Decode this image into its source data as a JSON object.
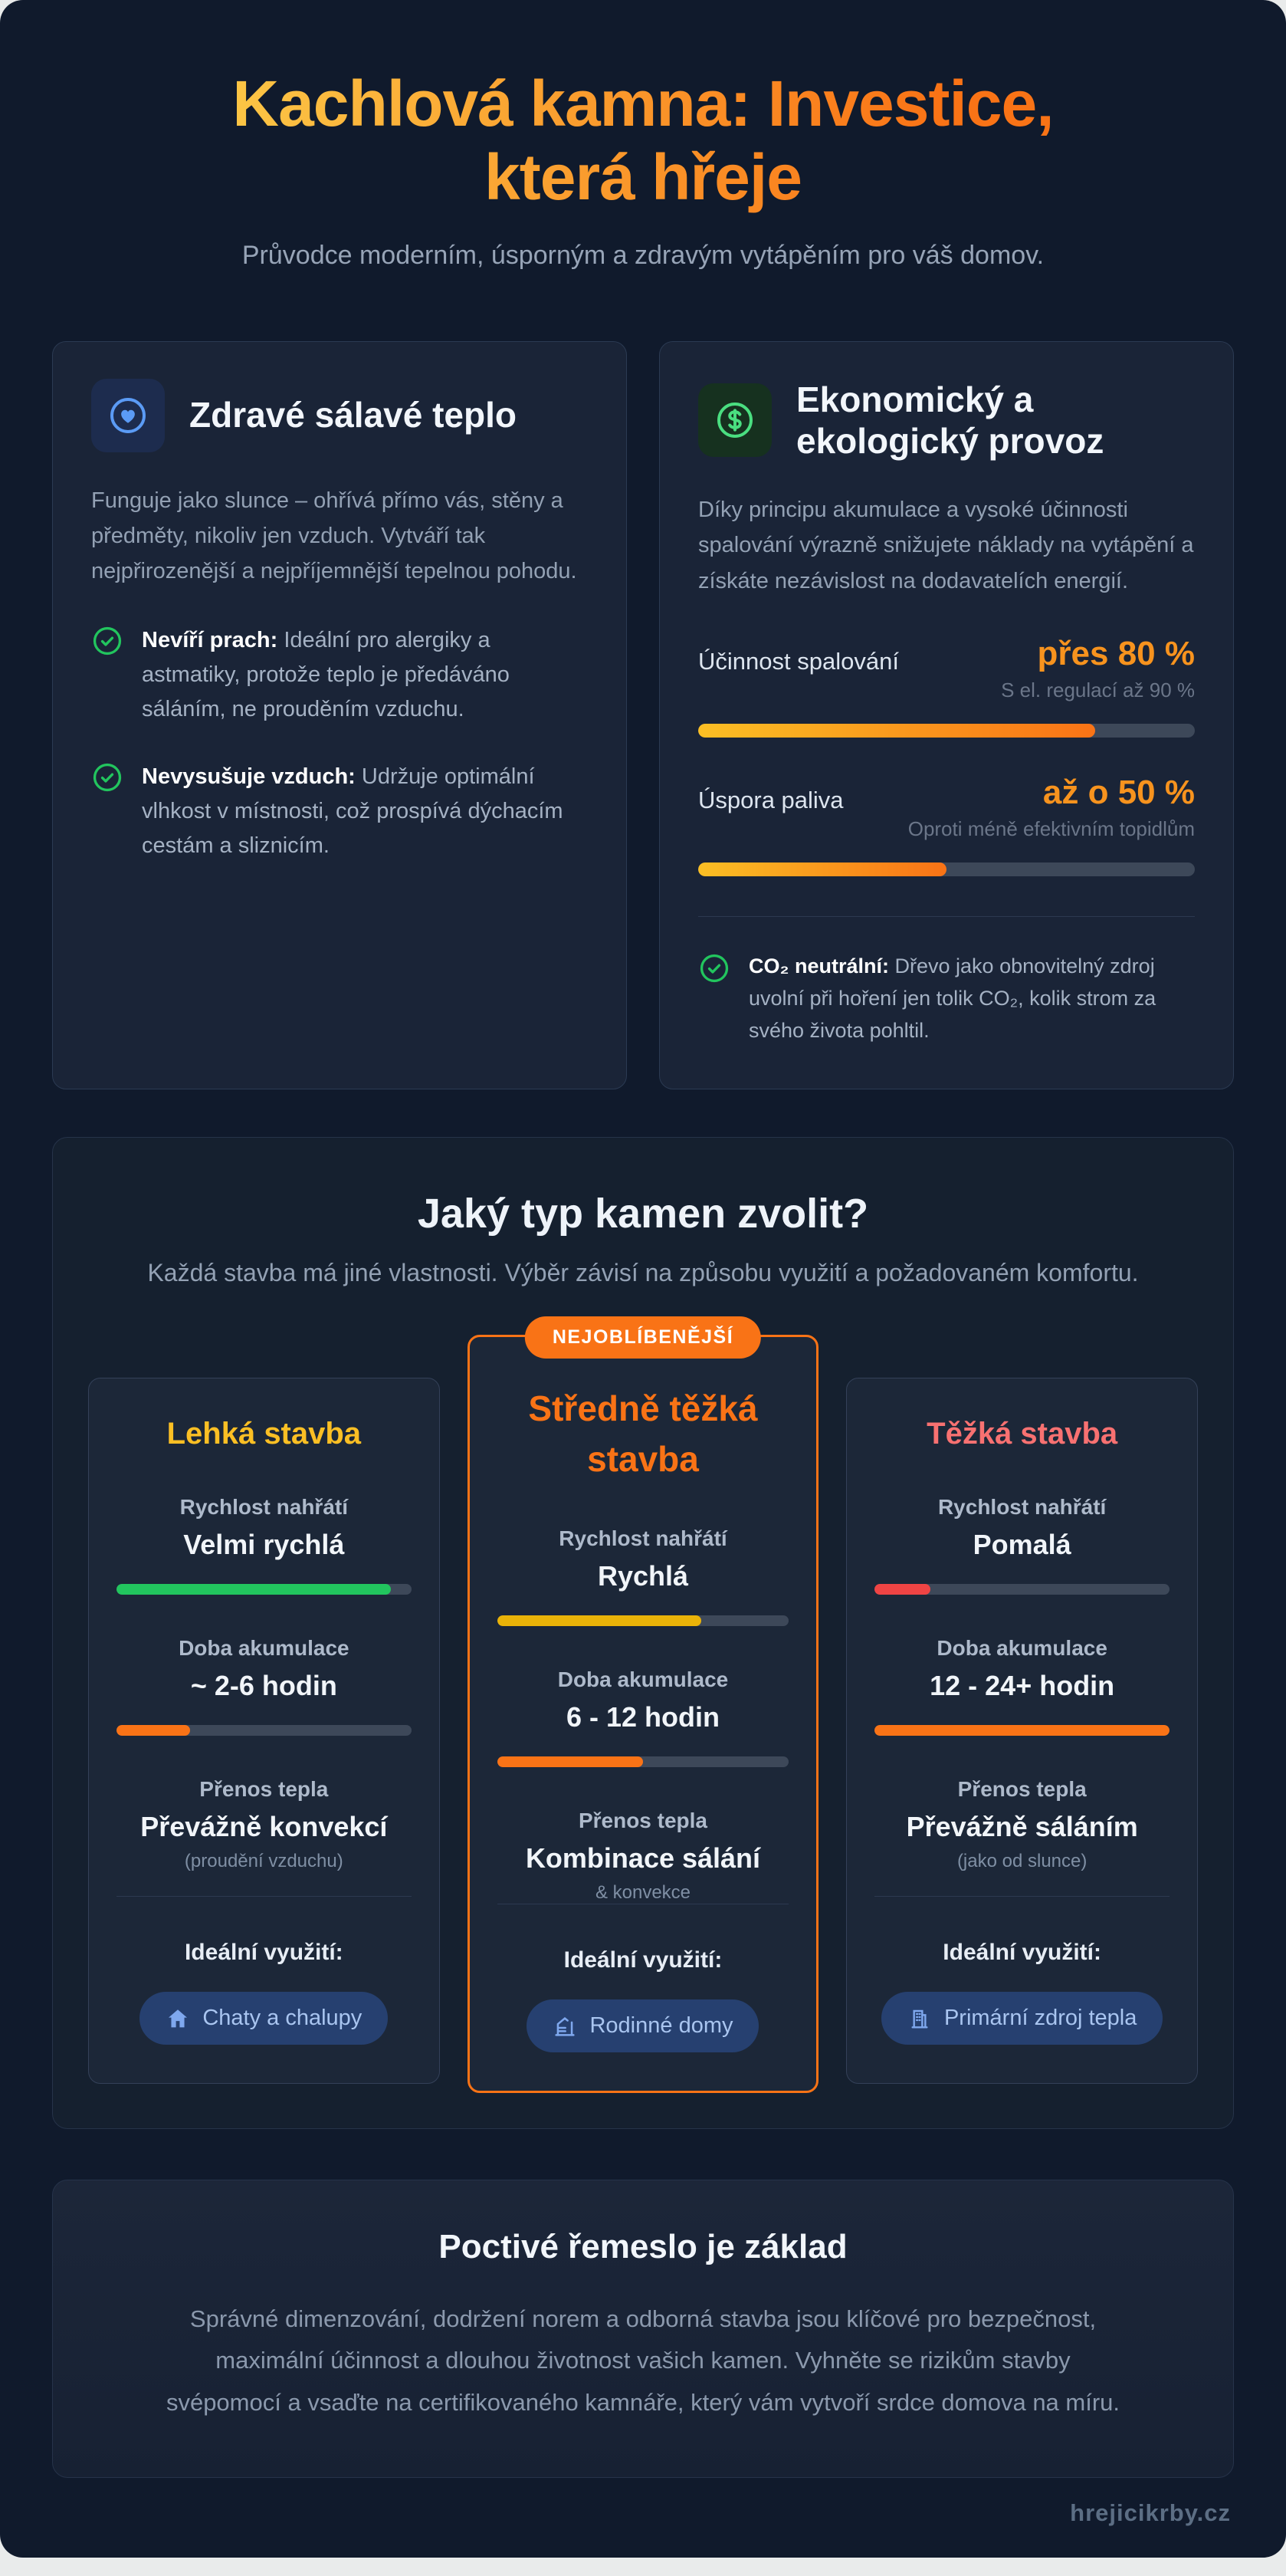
{
  "header": {
    "title_line1": "Kachlová kamna: Investice,",
    "title_line2": "která hřeje",
    "subtitle": "Průvodce moderním, úsporným a zdravým vytápěním pro váš domov.",
    "title_gradient_from": "#fcd34d",
    "title_gradient_to": "#f97316"
  },
  "health_card": {
    "icon": "heart-in-ring-icon",
    "icon_color": "#5b9bf5",
    "title": "Zdravé sálavé teplo",
    "description": "Funguje jako slunce – ohřívá přímo vás, stěny a předměty, nikoliv jen vzduch. Vytváří tak nejpřirozenější a nejpříjemnější tepelnou pohodu.",
    "points": [
      {
        "bold": "Nevíří prach:",
        "text": " Ideální pro alergiky a astmatiky, protože teplo je předáváno sáláním, ne prouděním vzduchu."
      },
      {
        "bold": "Nevysušuje vzduch:",
        "text": " Udržuje optimální vlhkost v místnosti, což prospívá dýchacím cestám a sliznicím."
      }
    ],
    "check_color": "#22c55e"
  },
  "economy_card": {
    "icon": "dollar-coin-icon",
    "icon_color": "#4ade80",
    "title": "Ekonomický a ekologický provoz",
    "description": "Díky principu akumulace a vysoké účinnosti spalování výrazně snižujete náklady na vytápění a získáte nezávislost na dodavatelích energií.",
    "stats": [
      {
        "label": "Účinnost spalování",
        "value": "přes 80 %",
        "sub": "S el. regulací až 90 %",
        "percent": 80,
        "bar": "linear-gradient(90deg,#fbbf24,#f97316)"
      },
      {
        "label": "Úspora paliva",
        "value": "až o 50 %",
        "sub": "Oproti méně efektivním topidlům",
        "percent": 50,
        "bar": "linear-gradient(90deg,#fbbf24,#f97316)"
      }
    ],
    "value_color": "#f7931e",
    "note_bold": "CO₂ neutrální:",
    "note_text": " Dřevo jako obnovitelný zdroj uvolní při hoření jen tolik CO₂, kolik strom za svého života pohltil."
  },
  "types_section": {
    "title": "Jaký typ kamen zvolit?",
    "subtitle": "Každá stavba má jiné vlastnosti. Výběr závisí na způsobu využití a požadovaném komfortu.",
    "badge": "NEJOBLÍBENĚJŠÍ",
    "badge_color": "#f97316",
    "columns": [
      {
        "title": "Lehká stavba",
        "title_color": "#fbbf24",
        "m1_label": "Rychlost nahřátí",
        "m1_value": "Velmi rychlá",
        "m1": {
          "percent": 93,
          "bar": "#22c55e"
        },
        "m2_label": "Doba akumulace",
        "m2_value": "~ 2-6 hodin",
        "m2": {
          "percent": 25,
          "bar": "#f97316"
        },
        "m3_label": "Přenos tepla",
        "m3_value": "Převážně konvekcí",
        "m3_note": "(proudění vzduchu)",
        "ideal_label": "Ideální využití:",
        "ideal_icon": "house-icon",
        "ideal_text": "Chaty a chalupy"
      },
      {
        "title": "Středně těžká stavba",
        "title_color": "#f97316",
        "m1_label": "Rychlost nahřátí",
        "m1_value": "Rychlá",
        "m1": {
          "percent": 70,
          "bar": "#eab308"
        },
        "m2_label": "Doba akumulace",
        "m2_value": "6 - 12 hodin",
        "m2": {
          "percent": 50,
          "bar": "#f97316"
        },
        "m3_label": "Přenos tepla",
        "m3_value": "Kombinace sálání",
        "m3_note": "& konvekce",
        "ideal_label": "Ideální využití:",
        "ideal_icon": "modern-house-icon",
        "ideal_text": "Rodinné domy"
      },
      {
        "title": "Těžká stavba",
        "title_color": "#f87171",
        "m1_label": "Rychlost nahřátí",
        "m1_value": "Pomalá",
        "m1": {
          "percent": 19,
          "bar": "#ef4444"
        },
        "m2_label": "Doba akumulace",
        "m2_value": "12 - 24+ hodin",
        "m2": {
          "percent": 100,
          "bar": "#f97316"
        },
        "m3_label": "Přenos tepla",
        "m3_value": "Převážně sáláním",
        "m3_note": "(jako od slunce)",
        "ideal_label": "Ideální využití:",
        "ideal_icon": "building-icon",
        "ideal_text": "Primární zdroj tepla"
      }
    ]
  },
  "craft_section": {
    "title": "Poctivé řemeslo je základ",
    "text": "Správné dimenzování, dodržení norem a odborná stavba jsou klíčové pro bezpečnost, maximální účinnost a dlouhou životnost vašich kamen. Vyhněte se rizikům stavby svépomocí a vsaďte na certifikovaného kamnáře, který vám vytvoří srdce domova na míru."
  },
  "footer": {
    "brand": "hrejicikrby.cz"
  }
}
